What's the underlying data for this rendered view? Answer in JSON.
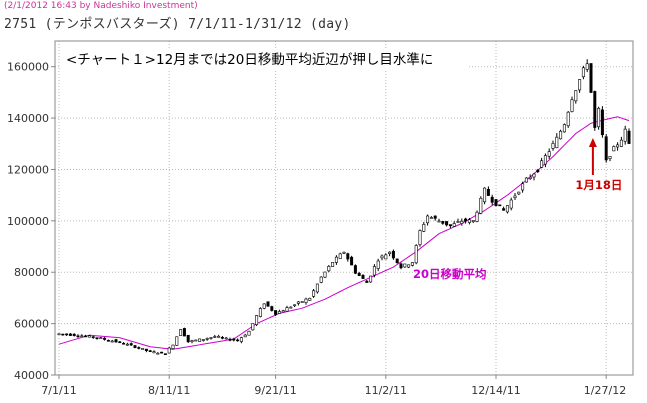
{
  "header": {
    "meta": "(2/1/2012 16:43 by Nadeshiko Investment)",
    "title": "2751 (テンポスバスターズ) 7/1/11-1/31/12 (day)"
  },
  "chart_data": {
    "type": "candlestick",
    "note": "<チャート１>12月までは20日移動平均近辺が押し目水準に",
    "ylim": [
      40000,
      170000
    ],
    "ytick_labels": [
      "40000",
      "60000",
      "80000",
      "100000",
      "120000",
      "140000",
      "160000"
    ],
    "yticks": [
      40000,
      60000,
      80000,
      100000,
      120000,
      140000,
      160000
    ],
    "xtick_labels": [
      "7/1/11",
      "8/11/11",
      "9/21/11",
      "11/2/11",
      "12/14/11",
      "1/27/12"
    ],
    "xtick_index": [
      0,
      29,
      57,
      86,
      115,
      144
    ],
    "grid": true,
    "annotations": [
      {
        "text": "20日移動平均",
        "color": "#cc00cc"
      },
      {
        "text": "1月18日",
        "color": "#cc0000"
      }
    ],
    "anchors": [
      [
        0,
        56000
      ],
      [
        5,
        55500
      ],
      [
        10,
        54500
      ],
      [
        15,
        53000
      ],
      [
        20,
        51000
      ],
      [
        24,
        49000
      ],
      [
        28,
        48500
      ],
      [
        30,
        52000
      ],
      [
        32,
        58000
      ],
      [
        34,
        53000
      ],
      [
        38,
        54000
      ],
      [
        41,
        55000
      ],
      [
        44,
        54000
      ],
      [
        47,
        53500
      ],
      [
        50,
        57000
      ],
      [
        52,
        63000
      ],
      [
        54,
        68000
      ],
      [
        57,
        64000
      ],
      [
        60,
        66000
      ],
      [
        63,
        68000
      ],
      [
        66,
        70000
      ],
      [
        69,
        78000
      ],
      [
        72,
        84000
      ],
      [
        75,
        88000
      ],
      [
        78,
        80000
      ],
      [
        81,
        76000
      ],
      [
        84,
        85000
      ],
      [
        87,
        88000
      ],
      [
        90,
        82000
      ],
      [
        93,
        84000
      ],
      [
        95,
        96000
      ],
      [
        97,
        102000
      ],
      [
        100,
        100000
      ],
      [
        103,
        98000
      ],
      [
        106,
        100000
      ],
      [
        109,
        100000
      ],
      [
        112,
        112000
      ],
      [
        114,
        108000
      ],
      [
        117,
        104000
      ],
      [
        120,
        110000
      ],
      [
        123,
        116000
      ],
      [
        126,
        120000
      ],
      [
        128,
        125000
      ],
      [
        131,
        132000
      ],
      [
        133,
        138000
      ],
      [
        135,
        148000
      ],
      [
        137,
        155000
      ],
      [
        139,
        162000
      ],
      [
        140,
        150000
      ],
      [
        141,
        136000
      ],
      [
        142,
        143000
      ],
      [
        143,
        133000
      ],
      [
        144,
        123000
      ],
      [
        145,
        126000
      ],
      [
        146,
        128000
      ],
      [
        148,
        132000
      ],
      [
        149,
        135000
      ],
      [
        150,
        130000
      ]
    ],
    "ma20": [
      [
        0,
        52000
      ],
      [
        8,
        55500
      ],
      [
        16,
        54500
      ],
      [
        24,
        51000
      ],
      [
        30,
        50000
      ],
      [
        38,
        52000
      ],
      [
        46,
        54000
      ],
      [
        52,
        60000
      ],
      [
        58,
        64000
      ],
      [
        64,
        66000
      ],
      [
        70,
        69500
      ],
      [
        76,
        74000
      ],
      [
        82,
        78000
      ],
      [
        88,
        82000
      ],
      [
        94,
        88000
      ],
      [
        100,
        95000
      ],
      [
        106,
        99000
      ],
      [
        112,
        104000
      ],
      [
        118,
        110000
      ],
      [
        124,
        117000
      ],
      [
        130,
        125000
      ],
      [
        136,
        134000
      ],
      [
        140,
        138000
      ],
      [
        144,
        139500
      ],
      [
        147,
        140500
      ],
      [
        150,
        139000
      ]
    ]
  }
}
